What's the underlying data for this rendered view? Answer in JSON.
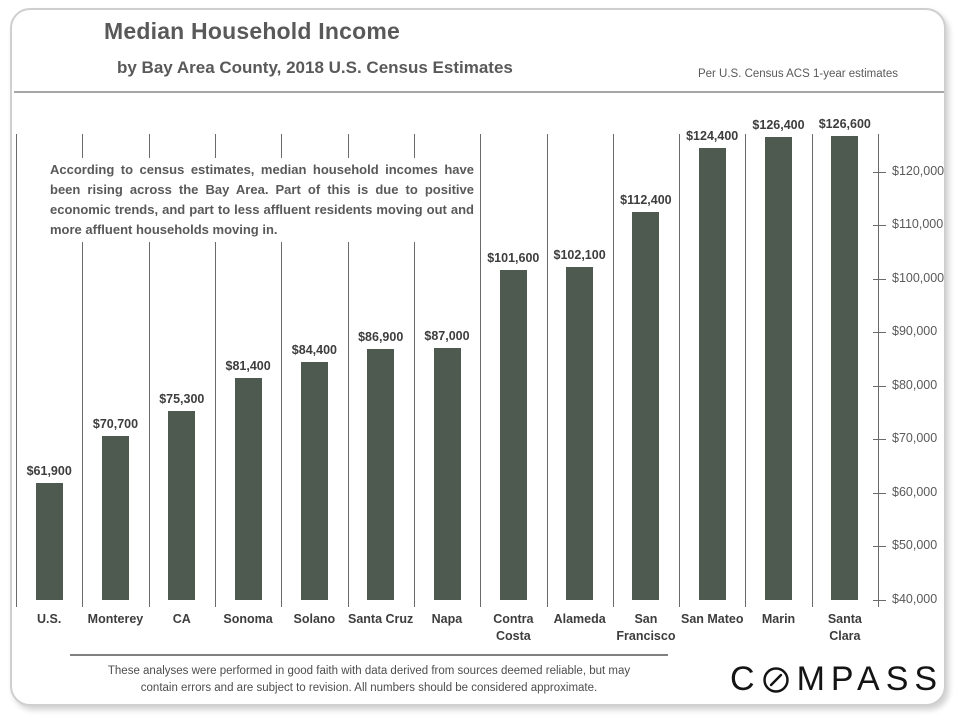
{
  "chart_data": {
    "type": "bar",
    "title": "Median Household Income",
    "subtitle": "by Bay Area County, 2018 U.S. Census Estimates",
    "source_note": "Per U.S. Census ACS 1-year estimates",
    "annotation": "According to census estimates, median household incomes have been rising across the Bay Area. Part of this is due to positive economic trends, and part to less affluent residents moving out and more affluent households moving in.",
    "categories": [
      "U.S.",
      "Monterey",
      "CA",
      "Sonoma",
      "Solano",
      "Santa Cruz",
      "Napa",
      "Contra\nCosta",
      "Alameda",
      "San\nFrancisco",
      "San Mateo",
      "Marin",
      "Santa\nClara"
    ],
    "values": [
      61900,
      70700,
      75300,
      81400,
      84400,
      86900,
      87000,
      101600,
      102100,
      112400,
      124400,
      126400,
      126600
    ],
    "value_labels": [
      "$61,900",
      "$70,700",
      "$75,300",
      "$81,400",
      "$84,400",
      "$86,900",
      "$87,000",
      "$101,600",
      "$102,100",
      "$112,400",
      "$124,400",
      "$126,400",
      "$126,600"
    ],
    "ylim": [
      40000,
      127000
    ],
    "yticks": [
      40000,
      50000,
      60000,
      70000,
      80000,
      90000,
      100000,
      110000,
      120000
    ],
    "ytick_labels": [
      "$40,000",
      "$50,000",
      "$60,000",
      "$70,000",
      "$80,000",
      "$90,000",
      "$100,000",
      "$110,000",
      "$120,000"
    ],
    "value_axis_side": "right",
    "grid": "vertical-category-separators",
    "legend": "none",
    "bar_color": "#4e5a50",
    "gridline_color": "#6a6a6a",
    "accent_text_color": "#595959"
  },
  "footer": {
    "disclaimer_line1": "These analyses were performed in good faith with data derived from sources deemed reliable, but may",
    "disclaimer_line2": "contain errors and are subject to revision.  All numbers should be considered approximate.",
    "logo": {
      "text": "COMPASS",
      "prefix": "C",
      "suffix": "MPASS",
      "o_style": "slashed-circle"
    }
  }
}
